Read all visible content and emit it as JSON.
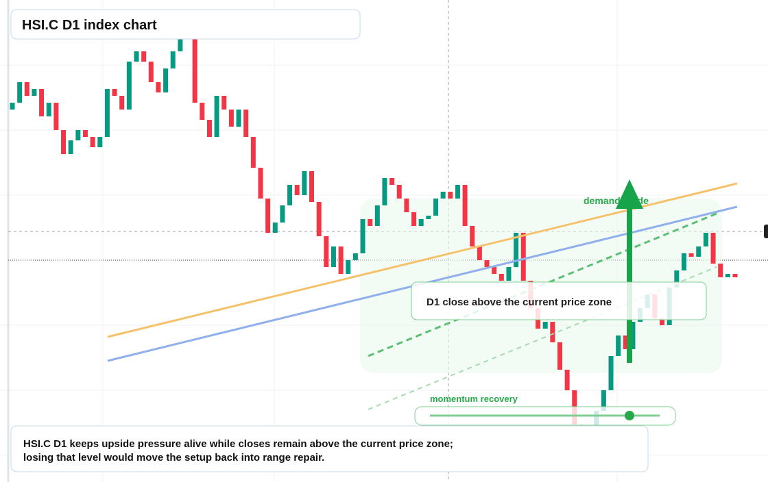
{
  "chart_data": {
    "type": "candlestick",
    "title": "HSI.C D1 index chart",
    "annotations": [
      "demand guide",
      "D1 close above the current price zone",
      "momentum recovery"
    ],
    "summary": [
      "HSI.C D1 keeps upside pressure alive while closes remain above the current price zone;",
      "losing that level would move the setup back into range repair."
    ],
    "up_color": "#089981",
    "down_color": "#f23645",
    "ylim": [
      0,
      704
    ],
    "open": [
      544,
      554,
      584,
      564,
      574,
      534,
      554,
      514,
      479,
      499,
      514,
      504,
      489,
      504,
      574,
      564,
      544,
      614,
      629,
      614,
      584,
      569,
      604,
      629,
      654,
      659,
      554,
      529,
      504,
      564,
      544,
      519,
      544,
      504,
      459,
      414,
      364,
      379,
      404,
      434,
      419,
      454,
      409,
      359,
      314,
      344,
      304,
      324,
      334,
      384,
      374,
      404,
      444,
      434,
      414,
      394,
      374,
      384,
      389,
      414,
      424,
      414,
      434,
      374,
      344,
      324,
      314,
      304,
      294,
      314,
      364,
      294,
      254,
      224,
      234,
      204,
      164,
      134,
      84,
      24,
      64,
      104,
      134,
      184,
      214,
      194,
      234,
      254,
      274,
      239,
      229,
      284,
      309,
      334,
      329,
      344,
      364,
      319,
      299,
      304
    ],
    "close": [
      554,
      584,
      564,
      574,
      534,
      554,
      514,
      479,
      499,
      514,
      504,
      489,
      504,
      574,
      564,
      544,
      614,
      629,
      614,
      584,
      569,
      604,
      629,
      654,
      659,
      554,
      529,
      504,
      564,
      544,
      519,
      544,
      504,
      459,
      414,
      364,
      379,
      404,
      434,
      419,
      454,
      409,
      359,
      314,
      344,
      304,
      324,
      334,
      384,
      374,
      404,
      444,
      434,
      414,
      394,
      374,
      384,
      389,
      414,
      424,
      414,
      434,
      374,
      344,
      324,
      314,
      304,
      294,
      314,
      364,
      294,
      254,
      224,
      234,
      204,
      164,
      134,
      84,
      24,
      64,
      104,
      134,
      184,
      214,
      194,
      234,
      254,
      274,
      239,
      229,
      284,
      309,
      334,
      329,
      344,
      364,
      319,
      299,
      304,
      299
    ]
  }
}
